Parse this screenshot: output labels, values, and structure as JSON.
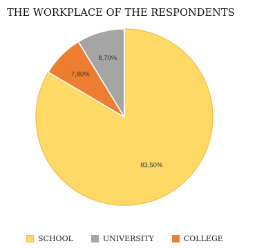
{
  "chart_data": {
    "type": "pie",
    "title": "THE WORKPLACE OF THE RESPONDENTS",
    "slices": [
      {
        "label": "SCHOOL",
        "value": 83.5,
        "display": "83,50%",
        "color": "#FFD966",
        "stroke": "#F2B84B"
      },
      {
        "label": "COLLEGE",
        "value": 7.8,
        "display": "7,80%",
        "color": "#ED7D31",
        "stroke": "#FFFFFF"
      },
      {
        "label": "UNIVERSITY",
        "value": 8.7,
        "display": "8,70%",
        "color": "#A5A5A5",
        "stroke": "#FFFFFF"
      }
    ],
    "legend": [
      {
        "label": "SCHOOL",
        "color": "#FFD966",
        "border": "#F2B84B"
      },
      {
        "label": "UNIVERSITY",
        "color": "#A5A5A5",
        "border": "#A5A5A5"
      },
      {
        "label": "COLLEGE",
        "color": "#ED7D31",
        "border": "#ED7D31"
      }
    ],
    "legend_position": "bottom"
  }
}
